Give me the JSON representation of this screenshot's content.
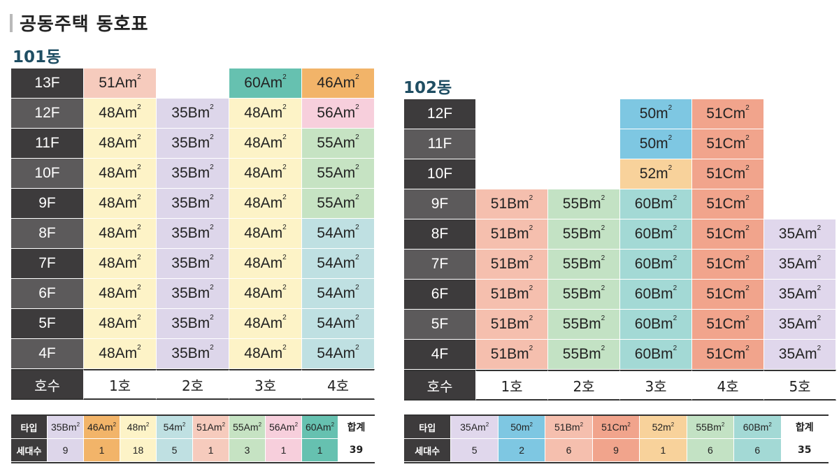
{
  "title": "공동주택 동호표",
  "colors": {
    "floor_dark": "#3d3b3c",
    "c51A": "#f6cbbd",
    "c48A": "#fdf3c7",
    "c35B": "#ddd6ea",
    "c60A": "#66c1b0",
    "c46A": "#f2b469",
    "c56A": "#f7cfdc",
    "c55A": "#c6e3c3",
    "c54A": "#bfe0e2",
    "c50": "#7ec7e2",
    "c51C": "#f1a48c",
    "c52": "#f8d29b",
    "c51B": "#f5bfae",
    "c55B": "#c3e2c4",
    "c60B": "#a3d9d5",
    "c35A": "#e0d7ec"
  },
  "b101": {
    "name": "101동",
    "rows": [
      {
        "floor": "13F",
        "cells": [
          {
            "t": "51Am",
            "c": "c51A"
          },
          {
            "t": "",
            "c": "empty"
          },
          {
            "t": "60Am",
            "c": "c60A"
          },
          {
            "t": "46Am",
            "c": "c46A"
          }
        ]
      },
      {
        "floor": "12F",
        "cells": [
          {
            "t": "48Am",
            "c": "c48A"
          },
          {
            "t": "35Bm",
            "c": "c35B"
          },
          {
            "t": "48Am",
            "c": "c48A"
          },
          {
            "t": "56Am",
            "c": "c56A"
          }
        ]
      },
      {
        "floor": "11F",
        "cells": [
          {
            "t": "48Am",
            "c": "c48A"
          },
          {
            "t": "35Bm",
            "c": "c35B"
          },
          {
            "t": "48Am",
            "c": "c48A"
          },
          {
            "t": "55Am",
            "c": "c55A"
          }
        ]
      },
      {
        "floor": "10F",
        "cells": [
          {
            "t": "48Am",
            "c": "c48A"
          },
          {
            "t": "35Bm",
            "c": "c35B"
          },
          {
            "t": "48Am",
            "c": "c48A"
          },
          {
            "t": "55Am",
            "c": "c55A"
          }
        ]
      },
      {
        "floor": "9F",
        "cells": [
          {
            "t": "48Am",
            "c": "c48A"
          },
          {
            "t": "35Bm",
            "c": "c35B"
          },
          {
            "t": "48Am",
            "c": "c48A"
          },
          {
            "t": "55Am",
            "c": "c55A"
          }
        ]
      },
      {
        "floor": "8F",
        "cells": [
          {
            "t": "48Am",
            "c": "c48A"
          },
          {
            "t": "35Bm",
            "c": "c35B"
          },
          {
            "t": "48Am",
            "c": "c48A"
          },
          {
            "t": "54Am",
            "c": "c54A"
          }
        ]
      },
      {
        "floor": "7F",
        "cells": [
          {
            "t": "48Am",
            "c": "c48A"
          },
          {
            "t": "35Bm",
            "c": "c35B"
          },
          {
            "t": "48Am",
            "c": "c48A"
          },
          {
            "t": "54Am",
            "c": "c54A"
          }
        ]
      },
      {
        "floor": "6F",
        "cells": [
          {
            "t": "48Am",
            "c": "c48A"
          },
          {
            "t": "35Bm",
            "c": "c35B"
          },
          {
            "t": "48Am",
            "c": "c48A"
          },
          {
            "t": "54Am",
            "c": "c54A"
          }
        ]
      },
      {
        "floor": "5F",
        "cells": [
          {
            "t": "48Am",
            "c": "c48A"
          },
          {
            "t": "35Bm",
            "c": "c35B"
          },
          {
            "t": "48Am",
            "c": "c48A"
          },
          {
            "t": "54Am",
            "c": "c54A"
          }
        ]
      },
      {
        "floor": "4F",
        "cells": [
          {
            "t": "48Am",
            "c": "c48A"
          },
          {
            "t": "35Bm",
            "c": "c35B"
          },
          {
            "t": "48Am",
            "c": "c48A"
          },
          {
            "t": "54Am",
            "c": "c54A"
          }
        ]
      }
    ],
    "unit_label": "호수",
    "units": [
      "1호",
      "2호",
      "3호",
      "4호"
    ],
    "summary": {
      "type_label": "타입",
      "count_label": "세대수",
      "total_label": "합계",
      "types": [
        {
          "t": "35Bm",
          "c": "c35B",
          "n": "9"
        },
        {
          "t": "46Am",
          "c": "c46A",
          "n": "1"
        },
        {
          "t": "48m",
          "c": "c48A",
          "n": "18"
        },
        {
          "t": "54m",
          "c": "c54A",
          "n": "5"
        },
        {
          "t": "51Am",
          "c": "c51A",
          "n": "1"
        },
        {
          "t": "55Am",
          "c": "c55A",
          "n": "3"
        },
        {
          "t": "56Am",
          "c": "c56A",
          "n": "1"
        },
        {
          "t": "60Am",
          "c": "c60A",
          "n": "1"
        }
      ],
      "total": "39"
    }
  },
  "b102": {
    "name": "102동",
    "rows": [
      {
        "floor": "12F",
        "cells": [
          {
            "t": "",
            "c": "empty"
          },
          {
            "t": "",
            "c": "empty"
          },
          {
            "t": "50m",
            "c": "c50"
          },
          {
            "t": "51Cm",
            "c": "c51C"
          },
          {
            "t": "",
            "c": "empty"
          }
        ]
      },
      {
        "floor": "11F",
        "cells": [
          {
            "t": "",
            "c": "empty"
          },
          {
            "t": "",
            "c": "empty"
          },
          {
            "t": "50m",
            "c": "c50"
          },
          {
            "t": "51Cm",
            "c": "c51C"
          },
          {
            "t": "",
            "c": "empty"
          }
        ]
      },
      {
        "floor": "10F",
        "cells": [
          {
            "t": "",
            "c": "empty"
          },
          {
            "t": "",
            "c": "empty"
          },
          {
            "t": "52m",
            "c": "c52"
          },
          {
            "t": "51Cm",
            "c": "c51C"
          },
          {
            "t": "",
            "c": "empty"
          }
        ]
      },
      {
        "floor": "9F",
        "cells": [
          {
            "t": "51Bm",
            "c": "c51B"
          },
          {
            "t": "55Bm",
            "c": "c55B"
          },
          {
            "t": "60Bm",
            "c": "c60B"
          },
          {
            "t": "51Cm",
            "c": "c51C"
          },
          {
            "t": "",
            "c": "empty"
          }
        ]
      },
      {
        "floor": "8F",
        "cells": [
          {
            "t": "51Bm",
            "c": "c51B"
          },
          {
            "t": "55Bm",
            "c": "c55B"
          },
          {
            "t": "60Bm",
            "c": "c60B"
          },
          {
            "t": "51Cm",
            "c": "c51C"
          },
          {
            "t": "35Am",
            "c": "c35A"
          }
        ]
      },
      {
        "floor": "7F",
        "cells": [
          {
            "t": "51Bm",
            "c": "c51B"
          },
          {
            "t": "55Bm",
            "c": "c55B"
          },
          {
            "t": "60Bm",
            "c": "c60B"
          },
          {
            "t": "51Cm",
            "c": "c51C"
          },
          {
            "t": "35Am",
            "c": "c35A"
          }
        ]
      },
      {
        "floor": "6F",
        "cells": [
          {
            "t": "51Bm",
            "c": "c51B"
          },
          {
            "t": "55Bm",
            "c": "c55B"
          },
          {
            "t": "60Bm",
            "c": "c60B"
          },
          {
            "t": "51Cm",
            "c": "c51C"
          },
          {
            "t": "35Am",
            "c": "c35A"
          }
        ]
      },
      {
        "floor": "5F",
        "cells": [
          {
            "t": "51Bm",
            "c": "c51B"
          },
          {
            "t": "55Bm",
            "c": "c55B"
          },
          {
            "t": "60Bm",
            "c": "c60B"
          },
          {
            "t": "51Cm",
            "c": "c51C"
          },
          {
            "t": "35Am",
            "c": "c35A"
          }
        ]
      },
      {
        "floor": "4F",
        "cells": [
          {
            "t": "51Bm",
            "c": "c51B"
          },
          {
            "t": "55Bm",
            "c": "c55B"
          },
          {
            "t": "60Bm",
            "c": "c60B"
          },
          {
            "t": "51Cm",
            "c": "c51C"
          },
          {
            "t": "35Am",
            "c": "c35A"
          }
        ]
      }
    ],
    "unit_label": "호수",
    "units": [
      "1호",
      "2호",
      "3호",
      "4호",
      "5호"
    ],
    "summary": {
      "type_label": "타입",
      "count_label": "세대수",
      "total_label": "합계",
      "types": [
        {
          "t": "35Am",
          "c": "c35A",
          "n": "5"
        },
        {
          "t": "50m",
          "c": "c50",
          "n": "2"
        },
        {
          "t": "51Bm",
          "c": "c51B",
          "n": "6"
        },
        {
          "t": "51Cm",
          "c": "c51C",
          "n": "9"
        },
        {
          "t": "52m",
          "c": "c52",
          "n": "1"
        },
        {
          "t": "55Bm",
          "c": "c55B",
          "n": "6"
        },
        {
          "t": "60Bm",
          "c": "c60B",
          "n": "6"
        }
      ],
      "total": "35"
    }
  }
}
